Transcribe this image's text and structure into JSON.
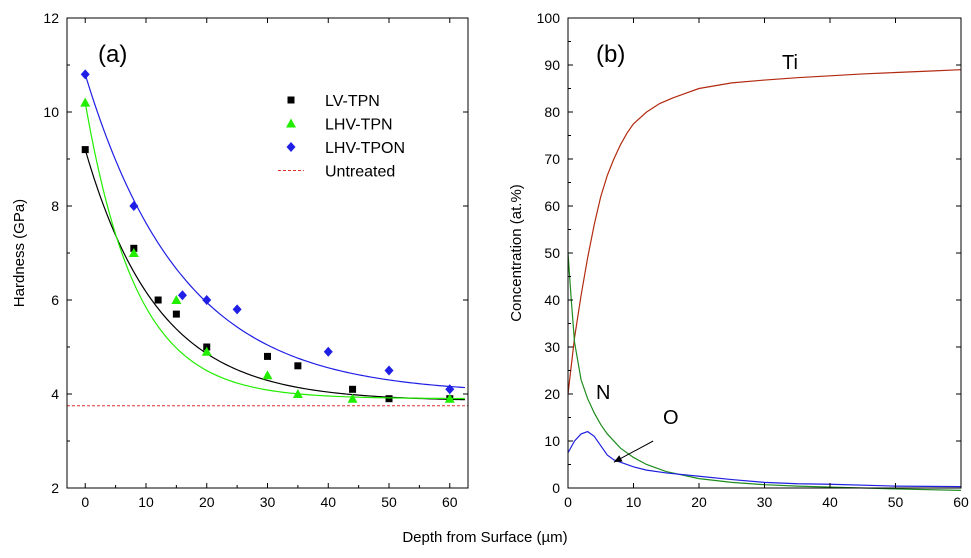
{
  "xlabel": "Depth from Surface (µm)",
  "chart_data": [
    {
      "type": "scatter",
      "panel_label": "(a)",
      "xlabel": "Depth from Surface (µm)",
      "ylabel": "Hardness (GPa)",
      "xlim": [
        -3,
        63
      ],
      "ylim": [
        2,
        12
      ],
      "xticks": [
        0,
        10,
        20,
        30,
        40,
        50,
        60
      ],
      "yticks": [
        2,
        4,
        6,
        8,
        10,
        12
      ],
      "legend_position": "top-right",
      "series": [
        {
          "name": "LV-TPN",
          "marker": "square",
          "color": "#000000",
          "x": [
            0,
            8,
            12,
            15,
            20,
            30,
            35,
            44,
            50,
            60
          ],
          "y": [
            9.2,
            7.1,
            6.0,
            5.7,
            5.0,
            4.8,
            4.6,
            4.1,
            3.9,
            3.9
          ],
          "fit": {
            "y0": 9.2,
            "yinf": 3.85,
            "decay": 12
          }
        },
        {
          "name": "LHV-TPN",
          "marker": "triangle",
          "color": "#22ee00",
          "x": [
            0,
            8,
            15,
            20,
            30,
            35,
            44,
            60
          ],
          "y": [
            10.2,
            7.0,
            6.0,
            4.9,
            4.4,
            4.0,
            3.9,
            3.9
          ],
          "fit": {
            "y0": 10.2,
            "yinf": 3.9,
            "decay": 8.5
          }
        },
        {
          "name": "LHV-TPON",
          "marker": "diamond",
          "color": "#1f1fe6",
          "x": [
            0,
            8,
            16,
            20,
            25,
            40,
            50,
            60
          ],
          "y": [
            10.8,
            8.0,
            6.1,
            6.0,
            5.8,
            4.9,
            4.5,
            4.1
          ],
          "fit": {
            "y0": 10.8,
            "yinf": 4.0,
            "decay": 16
          }
        },
        {
          "name": "Untreated",
          "style": "dashed-line",
          "color": "#e03030",
          "y": 3.75
        }
      ]
    },
    {
      "type": "line",
      "panel_label": "(b)",
      "xlabel": "Depth from Surface (µm)",
      "ylabel": "Concentration (at.%)",
      "xlim": [
        0,
        60
      ],
      "ylim": [
        0,
        100
      ],
      "xticks": [
        0,
        10,
        20,
        30,
        40,
        50,
        60
      ],
      "yticks": [
        0,
        10,
        20,
        30,
        40,
        50,
        60,
        70,
        80,
        90,
        100
      ],
      "series": [
        {
          "name": "Ti",
          "color": "#b22a10",
          "x": [
            0,
            0.5,
            1,
            2,
            3,
            4,
            5,
            6,
            7,
            8,
            9,
            10,
            12,
            14,
            16,
            18,
            20,
            25,
            30,
            35,
            40,
            45,
            50,
            55,
            60
          ],
          "y": [
            20,
            26,
            32,
            41,
            49,
            56,
            62,
            66.5,
            70,
            73,
            75.5,
            77.5,
            80,
            81.8,
            83,
            84,
            85,
            86.2,
            86.8,
            87.3,
            87.7,
            88.1,
            88.4,
            88.7,
            89
          ]
        },
        {
          "name": "N",
          "color": "#1e8c1e",
          "x": [
            0,
            0.5,
            1,
            2,
            3,
            4,
            5,
            6,
            8,
            10,
            12,
            15,
            20,
            25,
            30,
            35,
            40,
            50,
            60
          ],
          "y": [
            50,
            40,
            31,
            23,
            19,
            16,
            13.5,
            11.5,
            8.5,
            6.5,
            5,
            3.5,
            2,
            1.2,
            0.7,
            0.4,
            0.2,
            -0.2,
            -0.5
          ]
        },
        {
          "name": "O",
          "color": "#2020e0",
          "x": [
            0,
            1,
            2,
            3,
            4,
            5,
            6,
            7,
            8,
            10,
            12,
            15,
            20,
            25,
            30,
            35,
            40,
            50,
            60
          ],
          "y": [
            7.5,
            10,
            11.5,
            12,
            11,
            9,
            7,
            6,
            5.5,
            4.5,
            3.8,
            3.2,
            2.5,
            1.8,
            1.2,
            0.9,
            0.8,
            0.4,
            0.3
          ]
        }
      ],
      "annotations": {
        "ti_label": "Ti",
        "n_label": "N",
        "o_label": "O",
        "o_arrow": {
          "from": [
            13,
            10
          ],
          "to": [
            7,
            5.5
          ]
        }
      }
    }
  ]
}
